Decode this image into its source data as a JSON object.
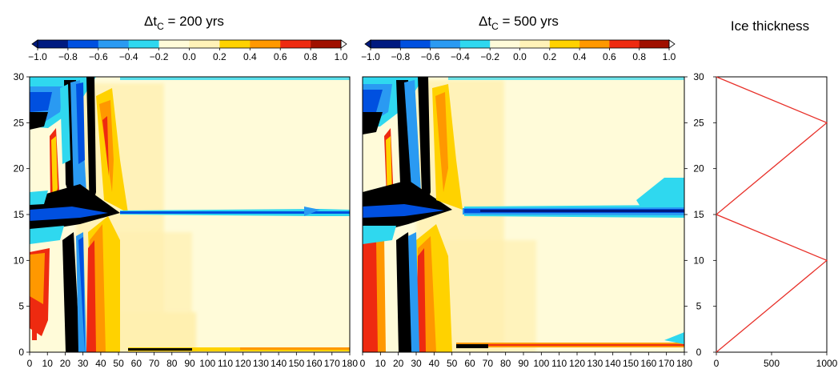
{
  "chart_data": [
    {
      "type": "heatmap",
      "title": "Δt_C = 200 yrs",
      "title_base": "Δt",
      "title_sub": "C",
      "title_rest": " = 200 yrs",
      "x_ticks": [
        0,
        10,
        20,
        30,
        40,
        50,
        60,
        70,
        80,
        90,
        100,
        110,
        120,
        130,
        140,
        150,
        160,
        170,
        180
      ],
      "y_ticks": [
        0,
        5,
        10,
        15,
        20,
        25,
        30
      ],
      "xlim": [
        0,
        180
      ],
      "ylim": [
        0,
        30
      ],
      "colorbar": {
        "ticks": [
          "−1.0",
          "−0.8",
          "−0.6",
          "−0.4",
          "−0.2",
          "0.0",
          "0.2",
          "0.4",
          "0.6",
          "0.8",
          "1.0"
        ],
        "range": [
          -1.0,
          1.0
        ],
        "colors": [
          "#001a80",
          "#0050e0",
          "#2a9af2",
          "#2fd8ef",
          "#fffbd9",
          "#fff2b8",
          "#ffd200",
          "#ff9800",
          "#ee2a10",
          "#a01000"
        ]
      },
      "features": {
        "band_y": 15.3,
        "band_start_x": 50,
        "bottom_strip_y": 0.35
      }
    },
    {
      "type": "heatmap",
      "title": "Δt_C = 500 yrs",
      "title_base": "Δt",
      "title_sub": "C",
      "title_rest": " = 500 yrs",
      "x_ticks": [
        0,
        10,
        20,
        30,
        40,
        50,
        60,
        70,
        80,
        90,
        100,
        110,
        120,
        130,
        140,
        150,
        160,
        170,
        180
      ],
      "y_ticks": [
        0,
        5,
        10,
        15,
        20,
        25,
        30
      ],
      "xlim": [
        0,
        180
      ],
      "ylim": [
        0,
        30
      ],
      "colorbar": {
        "ticks": [
          "−1.0",
          "−0.8",
          "−0.6",
          "−0.4",
          "−0.2",
          "0.0",
          "0.2",
          "0.4",
          "0.6",
          "0.8",
          "1.0"
        ],
        "range": [
          -1.0,
          1.0
        ],
        "colors": [
          "#001a80",
          "#0050e0",
          "#2a9af2",
          "#2fd8ef",
          "#fffbd9",
          "#fff2b8",
          "#ffd200",
          "#ff9800",
          "#ee2a10",
          "#a01000"
        ]
      },
      "features": {
        "band_y": 15.4,
        "band_start_x": 58,
        "bottom_strip_y": 0.5
      }
    },
    {
      "type": "line",
      "title": "Ice thickness",
      "x": [
        0,
        1000,
        0,
        1000,
        0
      ],
      "y": [
        0,
        10,
        15,
        25,
        30
      ],
      "xlim": [
        0,
        1000
      ],
      "ylim": [
        0,
        30
      ],
      "x_ticks": [
        0,
        500,
        1000
      ],
      "y_ticks": [
        0,
        5,
        10,
        15,
        20,
        25,
        30
      ],
      "line_color": "#e8312a"
    }
  ]
}
